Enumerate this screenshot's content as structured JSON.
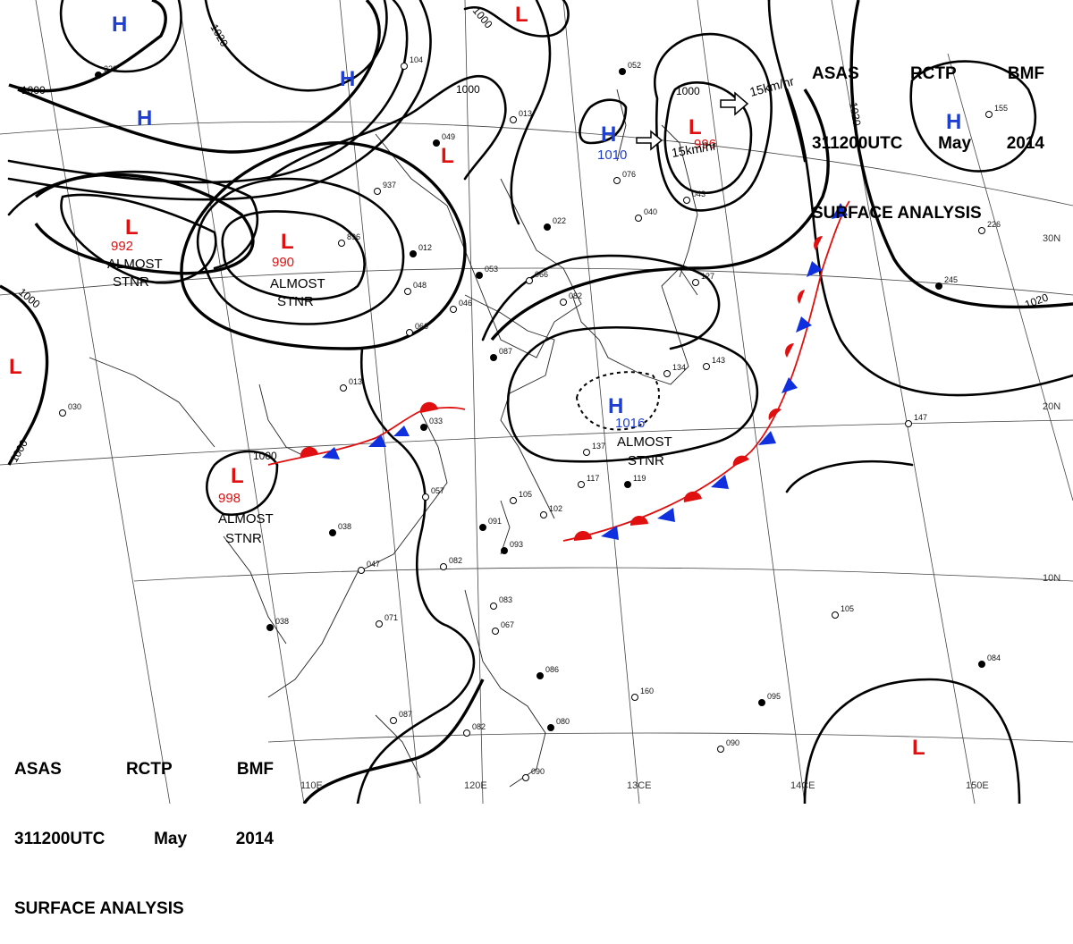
{
  "header": {
    "line1": [
      "ASAS",
      "RCTP",
      "BMF"
    ],
    "line2": [
      "311200UTC",
      "May",
      "2014"
    ],
    "line3": "SURFACE ANALYSIS"
  },
  "isobar_labels": [
    "1000",
    "1020",
    "1000",
    "1020",
    "1000",
    "1000",
    "1000",
    "1020",
    "1000",
    "1000"
  ],
  "pressure_centers": [
    {
      "type": "H",
      "value": ""
    },
    {
      "type": "H",
      "value": ""
    },
    {
      "type": "H",
      "value": ""
    },
    {
      "type": "L",
      "value": "992"
    },
    {
      "type": "L",
      "value": "990"
    },
    {
      "type": "L",
      "value": "998"
    },
    {
      "type": "L",
      "value": ""
    },
    {
      "type": "L",
      "value": ""
    },
    {
      "type": "L",
      "value": "996"
    },
    {
      "type": "H",
      "value": "1010"
    },
    {
      "type": "H",
      "value": "1016"
    },
    {
      "type": "H",
      "value": ""
    },
    {
      "type": "L",
      "value": ""
    },
    {
      "type": "L",
      "value": ""
    }
  ],
  "stationary_notes": [
    "ALMOST",
    "STNR",
    "ALMOST",
    "STNR",
    "ALMOST",
    "STNR",
    "ALMOST",
    "STNR"
  ],
  "motion_labels": [
    "15km/hr",
    "15km/hr"
  ],
  "longitude_labels": [
    "110E",
    "120E",
    "13CE",
    "14CE",
    "150E"
  ],
  "latitude_labels": [
    "30N",
    "20N",
    "10N"
  ],
  "front_colors": {
    "warm": "#e01010",
    "cold": "#1030e0",
    "high": "#1f3fd0",
    "low": "#e01010"
  },
  "station_obs": [
    "220",
    "104",
    "013",
    "049",
    "937",
    "896",
    "012",
    "048",
    "066",
    "053",
    "066",
    "046",
    "022",
    "076",
    "040",
    "052",
    "127",
    "082",
    "087",
    "013",
    "030",
    "038",
    "047",
    "057",
    "091",
    "105",
    "102",
    "093",
    "082",
    "071",
    "038",
    "083",
    "067",
    "086",
    "087",
    "082",
    "080",
    "090",
    "090",
    "095",
    "160",
    "105",
    "084",
    "137",
    "117",
    "119",
    "147",
    "226",
    "245",
    "155",
    "143",
    "033",
    "134",
    "043"
  ]
}
